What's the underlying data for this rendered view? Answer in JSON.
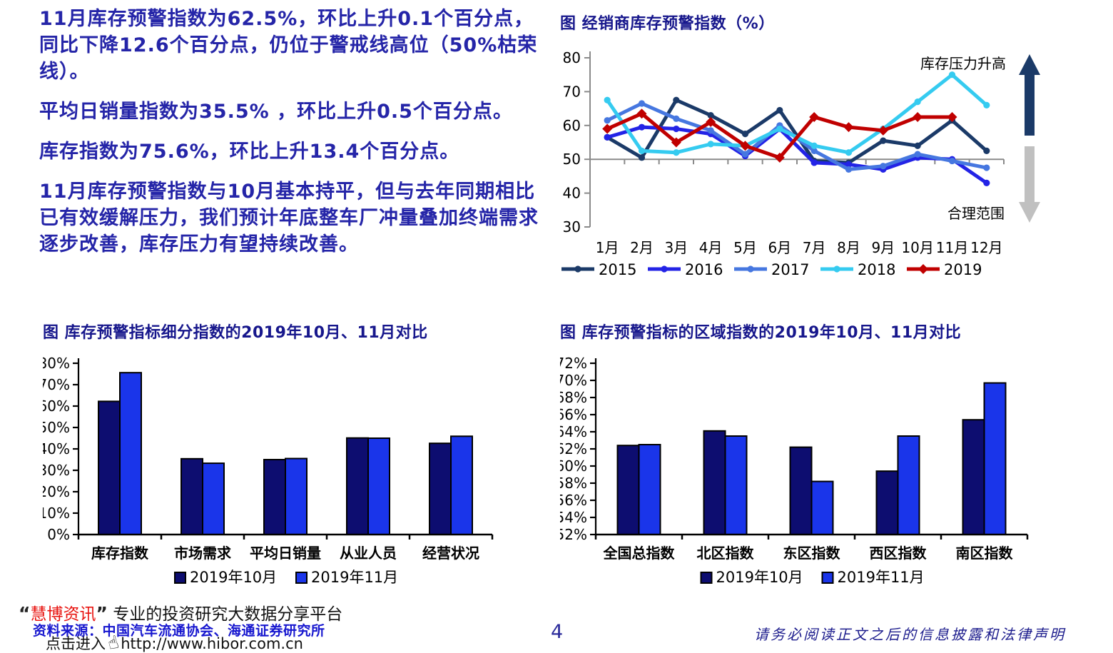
{
  "left_text": {
    "paragraphs": [
      "11月库存预警指数为62.5%，环比上升0.1个百分点，同比下降12.6个百分点，仍位于警戒线高位（50%枯荣线）。",
      "平均日销量指数为35.5% ，环比上升0.5个百分点。",
      "库存指数为75.6%，环比上升13.4个百分点。",
      "11月库存预警指数与10月基本持平，但与去年同期相比已有效缓解压力，我们预计年底整车厂冲量叠加终端需求逐步改善，库存压力有望持续改善。"
    ]
  },
  "chart_data": [
    {
      "type": "line",
      "title": "图 经销商库存预警指数（%）",
      "categories": [
        "1月",
        "2月",
        "3月",
        "4月",
        "5月",
        "6月",
        "7月",
        "8月",
        "9月",
        "10月",
        "11月",
        "12月"
      ],
      "ylim": [
        30,
        80
      ],
      "ytick_step": 10,
      "axis_cross_y": 50,
      "grid": false,
      "legend_position": "bottom",
      "series": [
        {
          "name": "2015",
          "color": "#1b3a68",
          "marker": "circle",
          "values": [
            56.5,
            50.5,
            67.5,
            63,
            57.5,
            64.5,
            49.5,
            49,
            55.5,
            54,
            61.5,
            52.5
          ]
        },
        {
          "name": "2016",
          "color": "#2323e6",
          "marker": "circle",
          "values": [
            56.5,
            59.5,
            59,
            57.5,
            51,
            59,
            49,
            48.5,
            47,
            50.5,
            50,
            43
          ]
        },
        {
          "name": "2017",
          "color": "#4677e0",
          "marker": "circle",
          "values": [
            61.5,
            66.5,
            62,
            58.5,
            51.5,
            60,
            52.5,
            47,
            48,
            51.5,
            49.5,
            47.5
          ]
        },
        {
          "name": "2018",
          "color": "#35cbf0",
          "marker": "circle",
          "values": [
            67.5,
            52.5,
            52,
            54.5,
            54,
            59,
            54,
            52,
            59,
            67,
            75,
            66
          ]
        },
        {
          "name": "2019",
          "color": "#c00000",
          "marker": "diamond",
          "values": [
            59,
            63.5,
            55,
            61,
            54,
            50.5,
            62.5,
            59.5,
            58.5,
            62.5,
            62.5,
            null
          ]
        }
      ],
      "annotations": {
        "up_label": "库存压力升高",
        "down_label": "合理范围",
        "up_color": "#1b3a68",
        "down_color": "#c0c0c0"
      }
    },
    {
      "type": "bar",
      "title": "图 库存预警指标细分指数的2019年10月、11月对比",
      "categories": [
        "库存指数",
        "市场需求",
        "平均日销量",
        "从业人员",
        "经营状况"
      ],
      "ylim": [
        0,
        80
      ],
      "ytick_step": 10,
      "yformat": "percent",
      "grid": false,
      "legend_position": "bottom",
      "series": [
        {
          "name": "2019年10月",
          "color": "#0d0d70",
          "values": [
            62.2,
            35.4,
            35.0,
            45.1,
            42.6
          ]
        },
        {
          "name": "2019年11月",
          "color": "#1a35ea",
          "values": [
            75.6,
            33.3,
            35.5,
            45.0,
            45.9
          ]
        }
      ]
    },
    {
      "type": "bar",
      "title": "图 库存预警指标的区域指数的2019年10月、11月对比",
      "categories": [
        "全国总指数",
        "北区指数",
        "东区指数",
        "西区指数",
        "南区指数"
      ],
      "ylim": [
        52,
        72
      ],
      "ytick_step": 2,
      "yformat": "percent",
      "grid": false,
      "legend_position": "bottom",
      "series": [
        {
          "name": "2019年10月",
          "color": "#0d0d70",
          "values": [
            62.4,
            64.1,
            62.2,
            59.4,
            65.4
          ]
        },
        {
          "name": "2019年11月",
          "color": "#1a35ea",
          "values": [
            62.5,
            63.5,
            58.2,
            63.5,
            69.7
          ]
        }
      ]
    }
  ],
  "footer": {
    "open_quote": "“",
    "brand": "慧博资讯",
    "close_quote": "”",
    "tagline": "专业的投资研究大数据分享平台",
    "source": "资料来源：中国汽车流通协会、海通证券研究所",
    "click_prompt": "点击进入",
    "url": "http://www.hibor.com.cn",
    "page_number": "4",
    "disclaimer": "请务必阅读正文之后的信息披露和法律声明"
  },
  "colors": {
    "body_text_blue": "#2525a8",
    "chart_title_blue": "#17178c",
    "brand_red": "#e8130f",
    "source_blue": "#1717cf",
    "disclaimer_blue": "#1b1b8c",
    "axis_gray": "#8a8a8a"
  }
}
